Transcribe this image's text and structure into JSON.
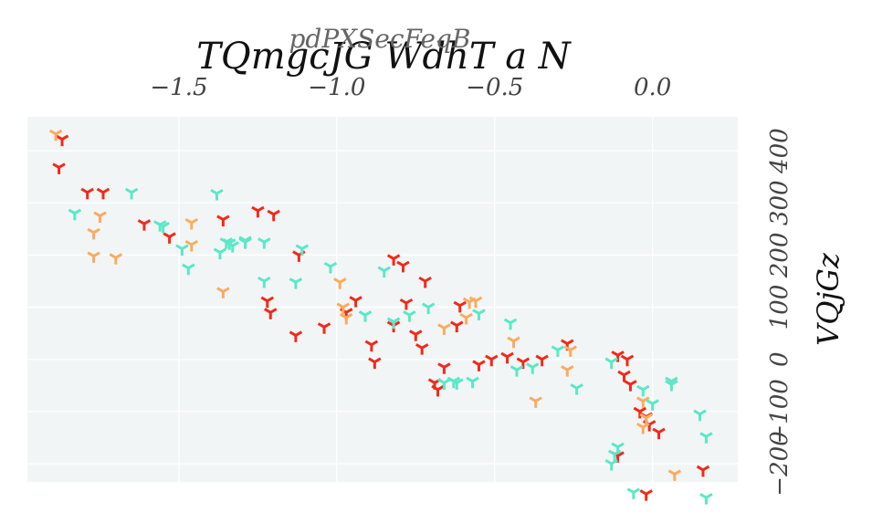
{
  "chart_data": {
    "type": "scatter",
    "title": "TQmgcJG WdhT a N",
    "xlabel": "pdPXSecFeqB",
    "ylabel": "VQjGz",
    "x_axis_position": "top",
    "y_axis_position": "right",
    "xlim": [
      -1.98,
      0.27
    ],
    "ylim": [
      -235,
      465
    ],
    "xticks": [
      -1.5,
      -1.0,
      -0.5,
      0.0
    ],
    "xtick_labels": [
      "−1.5",
      "−1.0",
      "−0.5",
      "0.0"
    ],
    "yticks": [
      -200,
      -100,
      0,
      100,
      200,
      300,
      400
    ],
    "ytick_labels": [
      "−200",
      "−100",
      "0",
      "100",
      "200",
      "300",
      "400"
    ],
    "grid": true,
    "legend": "none",
    "colors": {
      "plot_background": "#f2f5f6",
      "grid": "#ffffff",
      "red": "#f02a1a",
      "orange": "#fbab5e",
      "teal": "#5ae8c8"
    },
    "marker": "tri_down",
    "series": [
      {
        "color": "#f02a1a",
        "points": [
          [
            -1.87,
            422
          ],
          [
            -1.88,
            368
          ],
          [
            -1.79,
            320
          ],
          [
            -1.74,
            320
          ],
          [
            -1.61,
            260
          ],
          [
            -1.53,
            235
          ],
          [
            -1.36,
            268
          ],
          [
            -1.25,
            285
          ],
          [
            -1.2,
            278
          ],
          [
            -1.12,
            200
          ],
          [
            -1.22,
            112
          ],
          [
            -1.21,
            90
          ],
          [
            -1.13,
            46
          ],
          [
            -1.04,
            62
          ],
          [
            -0.97,
            90
          ],
          [
            -0.94,
            113
          ],
          [
            -0.89,
            28
          ],
          [
            -0.88,
            -5
          ],
          [
            -0.82,
            65
          ],
          [
            -0.82,
            193
          ],
          [
            -0.78,
            108
          ],
          [
            -0.79,
            180
          ],
          [
            -0.75,
            48
          ],
          [
            -0.73,
            22
          ],
          [
            -0.72,
            150
          ],
          [
            -0.69,
            -45
          ],
          [
            -0.68,
            -58
          ],
          [
            -0.66,
            -15
          ],
          [
            -0.62,
            65
          ],
          [
            -0.61,
            103
          ],
          [
            -0.55,
            -10
          ],
          [
            -0.51,
            0
          ],
          [
            -0.46,
            5
          ],
          [
            -0.41,
            -5
          ],
          [
            -0.35,
            0
          ],
          [
            -0.27,
            30
          ],
          [
            -0.11,
            8
          ],
          [
            -0.08,
            0
          ],
          [
            -0.09,
            -30
          ],
          [
            -0.07,
            -48
          ],
          [
            -0.04,
            -100
          ],
          [
            -0.02,
            -110
          ],
          [
            -0.01,
            -125
          ],
          [
            0.02,
            -140
          ],
          [
            -0.11,
            -185
          ],
          [
            -0.02,
            -258
          ],
          [
            0.16,
            -212
          ]
        ]
      },
      {
        "color": "#fbab5e",
        "points": [
          [
            -1.89,
            432
          ],
          [
            -1.75,
            275
          ],
          [
            -1.77,
            243
          ],
          [
            -1.77,
            198
          ],
          [
            -1.7,
            195
          ],
          [
            -1.46,
            262
          ],
          [
            -1.46,
            220
          ],
          [
            -1.36,
            130
          ],
          [
            -0.99,
            148
          ],
          [
            -0.98,
            100
          ],
          [
            -0.97,
            80
          ],
          [
            -0.66,
            60
          ],
          [
            -0.58,
            110
          ],
          [
            -0.56,
            112
          ],
          [
            -0.59,
            80
          ],
          [
            -0.44,
            35
          ],
          [
            -0.37,
            -80
          ],
          [
            -0.26,
            18
          ],
          [
            -0.27,
            -20
          ],
          [
            -0.03,
            -80
          ],
          [
            -0.03,
            -130
          ],
          [
            -0.02,
            -112
          ],
          [
            0.07,
            -220
          ]
        ]
      },
      {
        "color": "#5ae8c8",
        "points": [
          [
            -1.83,
            280
          ],
          [
            -1.65,
            320
          ],
          [
            -1.55,
            255
          ],
          [
            -1.56,
            258
          ],
          [
            -1.38,
            318
          ],
          [
            -1.34,
            223
          ],
          [
            -1.35,
            225
          ],
          [
            -1.37,
            205
          ],
          [
            -1.33,
            218
          ],
          [
            -1.29,
            225
          ],
          [
            -1.29,
            228
          ],
          [
            -1.23,
            225
          ],
          [
            -1.49,
            212
          ],
          [
            -1.47,
            175
          ],
          [
            -1.23,
            150
          ],
          [
            -1.13,
            148
          ],
          [
            -1.11,
            212
          ],
          [
            -1.02,
            178
          ],
          [
            -0.91,
            85
          ],
          [
            -0.85,
            170
          ],
          [
            -0.82,
            72
          ],
          [
            -0.77,
            85
          ],
          [
            -0.71,
            100
          ],
          [
            -0.66,
            -45
          ],
          [
            -0.63,
            -42
          ],
          [
            -0.62,
            -45
          ],
          [
            -0.57,
            -42
          ],
          [
            -0.55,
            88
          ],
          [
            -0.45,
            70
          ],
          [
            -0.43,
            -20
          ],
          [
            -0.38,
            -15
          ],
          [
            -0.3,
            18
          ],
          [
            -0.24,
            -55
          ],
          [
            -0.13,
            -5
          ],
          [
            -0.03,
            -58
          ],
          [
            0.0,
            -85
          ],
          [
            0.06,
            -48
          ],
          [
            0.06,
            -42
          ],
          [
            0.15,
            -105
          ],
          [
            0.17,
            -148
          ],
          [
            -0.13,
            -200
          ],
          [
            -0.12,
            -182
          ],
          [
            -0.11,
            -168
          ],
          [
            -0.06,
            -255
          ],
          [
            0.17,
            -265
          ]
        ]
      }
    ]
  }
}
